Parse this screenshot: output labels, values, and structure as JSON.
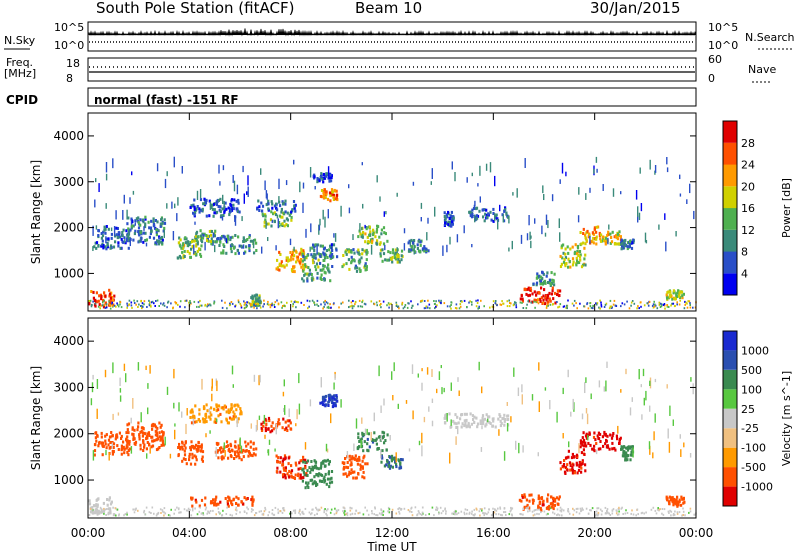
{
  "header": {
    "station": "South Pole Station (fitACF)",
    "beam": "Beam 10",
    "date": "30/Jan/2015"
  },
  "panels": {
    "nsky": {
      "label": "N.Sky",
      "tick_hi": "10^5",
      "tick_lo": "10^0"
    },
    "nsearch": {
      "label": "N.Search",
      "tick_hi": "10^5",
      "tick_lo": "10^0"
    },
    "freq": {
      "label_1": "Freq.",
      "label_2": "[MHz]",
      "tick_hi": "18",
      "tick_lo": "8"
    },
    "nave": {
      "label": "Nave",
      "tick_hi": "60",
      "tick_lo": "0"
    },
    "cpid": {
      "label": "CPID",
      "value": "normal (fast) -151 RF"
    }
  },
  "colors": {
    "power_scale": [
      "#0000f0",
      "#2a4fc8",
      "#3a8a7a",
      "#4fb050",
      "#d0d000",
      "#ff9a00",
      "#ff5000",
      "#e00000"
    ],
    "velocity_scale": [
      "#e00000",
      "#ff5000",
      "#ff9a00",
      "#f0c080",
      "#c8c8c8",
      "#58c840",
      "#3a8a50",
      "#2a4fb0",
      "#1a2ad0"
    ]
  },
  "chart_data": [
    {
      "type": "heatmap",
      "title": "Power",
      "ylabel": "Slant Range [km]",
      "xlabel": "Time UT",
      "x_ticks": [
        "00:00",
        "04:00",
        "08:00",
        "12:00",
        "16:00",
        "20:00",
        "00:00"
      ],
      "y_ticks": [
        1000,
        2000,
        3000,
        4000
      ],
      "ylim": [
        180,
        4500
      ],
      "xlim_hours": [
        0,
        24
      ],
      "colorbar": {
        "label": "Power [dB]",
        "ticks": [
          "4",
          "8",
          "12",
          "16",
          "20",
          "24",
          "28"
        ],
        "range": [
          0,
          30
        ]
      },
      "regions": [
        {
          "t": [
            0.0,
            1.0
          ],
          "r": [
            200,
            600
          ],
          "v": 26
        },
        {
          "t": [
            0.2,
            1.6
          ],
          "r": [
            1500,
            2000
          ],
          "v": 6
        },
        {
          "t": [
            1.5,
            3.0
          ],
          "r": [
            1600,
            2200
          ],
          "v": 8
        },
        {
          "t": [
            3.5,
            4.5
          ],
          "r": [
            1300,
            1800
          ],
          "v": 14
        },
        {
          "t": [
            4.2,
            5.0
          ],
          "r": [
            1600,
            1900
          ],
          "v": 12
        },
        {
          "t": [
            4.0,
            6.0
          ],
          "r": [
            2200,
            2600
          ],
          "v": 6
        },
        {
          "t": [
            5.0,
            6.6
          ],
          "r": [
            1400,
            1800
          ],
          "v": 10
        },
        {
          "t": [
            6.4,
            6.8
          ],
          "r": [
            250,
            500
          ],
          "v": 12
        },
        {
          "t": [
            6.8,
            8.0
          ],
          "r": [
            2000,
            2300
          ],
          "v": 14
        },
        {
          "t": [
            6.6,
            8.2
          ],
          "r": [
            2300,
            2550
          ],
          "v": 7
        },
        {
          "t": [
            7.4,
            8.6
          ],
          "r": [
            1000,
            1500
          ],
          "v": 20
        },
        {
          "t": [
            8.4,
            9.6
          ],
          "r": [
            800,
            1400
          ],
          "v": 11
        },
        {
          "t": [
            8.8,
            9.8
          ],
          "r": [
            1300,
            1600
          ],
          "v": 8
        },
        {
          "t": [
            9.1,
            9.8
          ],
          "r": [
            2550,
            2800
          ],
          "v": 22
        },
        {
          "t": [
            8.8,
            9.6
          ],
          "r": [
            2950,
            3150
          ],
          "v": 6
        },
        {
          "t": [
            10.0,
            11.0
          ],
          "r": [
            1000,
            1500
          ],
          "v": 12
        },
        {
          "t": [
            10.6,
            11.8
          ],
          "r": [
            1600,
            2000
          ],
          "v": 14
        },
        {
          "t": [
            11.5,
            12.4
          ],
          "r": [
            1200,
            1500
          ],
          "v": 13
        },
        {
          "t": [
            12.6,
            13.4
          ],
          "r": [
            1400,
            1700
          ],
          "v": 9
        },
        {
          "t": [
            15.0,
            16.6
          ],
          "r": [
            2100,
            2400
          ],
          "v": 6
        },
        {
          "t": [
            14.0,
            14.4
          ],
          "r": [
            2000,
            2300
          ],
          "v": 6
        },
        {
          "t": [
            17.0,
            18.6
          ],
          "r": [
            300,
            650
          ],
          "v": 27
        },
        {
          "t": [
            17.5,
            18.4
          ],
          "r": [
            700,
            1000
          ],
          "v": 10
        },
        {
          "t": [
            18.6,
            19.6
          ],
          "r": [
            1100,
            1600
          ],
          "v": 16
        },
        {
          "t": [
            19.4,
            20.2
          ],
          "r": [
            1600,
            2000
          ],
          "v": 20
        },
        {
          "t": [
            20.2,
            21.0
          ],
          "r": [
            1600,
            1900
          ],
          "v": 18
        },
        {
          "t": [
            21.0,
            21.5
          ],
          "r": [
            1500,
            1700
          ],
          "v": 8
        },
        {
          "t": [
            22.8,
            23.5
          ],
          "r": [
            400,
            600
          ],
          "v": 16
        }
      ]
    },
    {
      "type": "heatmap",
      "title": "Velocity",
      "ylabel": "Slant Range [km]",
      "xlabel": "Time UT",
      "x_ticks": [
        "00:00",
        "04:00",
        "08:00",
        "12:00",
        "16:00",
        "20:00",
        "00:00"
      ],
      "y_ticks": [
        1000,
        2000,
        3000,
        4000
      ],
      "ylim": [
        180,
        4500
      ],
      "xlim_hours": [
        0,
        24
      ],
      "colorbar": {
        "label": "Velocity [m s^-1]",
        "ticks": [
          "1000",
          "500",
          "100",
          "25",
          "-25",
          "-100",
          "-500",
          "-1000"
        ],
        "range": [
          -1200,
          1200
        ]
      },
      "regions": [
        {
          "t": [
            0.0,
            1.0
          ],
          "r": [
            200,
            600
          ],
          "v": 0
        },
        {
          "t": [
            0.2,
            1.6
          ],
          "r": [
            1500,
            2000
          ],
          "v": -150
        },
        {
          "t": [
            1.5,
            3.0
          ],
          "r": [
            1600,
            2200
          ],
          "v": -200
        },
        {
          "t": [
            3.5,
            4.5
          ],
          "r": [
            1300,
            1800
          ],
          "v": -300
        },
        {
          "t": [
            4.0,
            6.0
          ],
          "r": [
            2200,
            2600
          ],
          "v": -80
        },
        {
          "t": [
            5.0,
            6.6
          ],
          "r": [
            1400,
            1800
          ],
          "v": -250
        },
        {
          "t": [
            4.0,
            6.5
          ],
          "r": [
            400,
            600
          ],
          "v": -400
        },
        {
          "t": [
            6.8,
            8.0
          ],
          "r": [
            2000,
            2300
          ],
          "v": -450
        },
        {
          "t": [
            7.4,
            8.6
          ],
          "r": [
            1000,
            1500
          ],
          "v": -500
        },
        {
          "t": [
            8.4,
            9.6
          ],
          "r": [
            800,
            1400
          ],
          "v": 200
        },
        {
          "t": [
            9.1,
            9.8
          ],
          "r": [
            2550,
            2800
          ],
          "v": 700
        },
        {
          "t": [
            10.0,
            11.0
          ],
          "r": [
            1000,
            1500
          ],
          "v": -350
        },
        {
          "t": [
            10.6,
            11.8
          ],
          "r": [
            1600,
            2000
          ],
          "v": 250
        },
        {
          "t": [
            11.5,
            12.4
          ],
          "r": [
            1200,
            1500
          ],
          "v": 300
        },
        {
          "t": [
            14.0,
            16.6
          ],
          "r": [
            2100,
            2400
          ],
          "v": 0
        },
        {
          "t": [
            17.0,
            18.6
          ],
          "r": [
            300,
            650
          ],
          "v": -400
        },
        {
          "t": [
            18.6,
            19.6
          ],
          "r": [
            1100,
            1600
          ],
          "v": -600
        },
        {
          "t": [
            19.4,
            21.0
          ],
          "r": [
            1600,
            2000
          ],
          "v": -700
        },
        {
          "t": [
            21.0,
            21.5
          ],
          "r": [
            1400,
            1700
          ],
          "v": 200
        },
        {
          "t": [
            22.8,
            23.5
          ],
          "r": [
            400,
            600
          ],
          "v": -350
        }
      ]
    }
  ]
}
